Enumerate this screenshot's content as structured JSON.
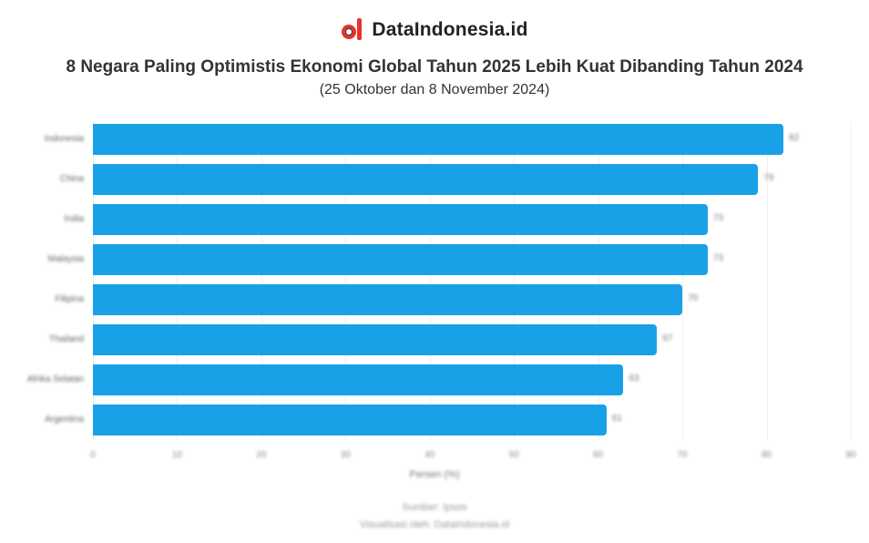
{
  "brand": {
    "name": "DataIndonesia.id",
    "logo_icon": "magnifier-d-logo-icon",
    "accent": "#e63329"
  },
  "header": {
    "title": "8 Negara Paling Optimistis Ekonomi Global Tahun 2025 Lebih Kuat Dibanding Tahun 2024",
    "subtitle": "(25 Oktober dan 8 November 2024)"
  },
  "footer": {
    "source": "Sumber: Ipsos",
    "credit": "Visualisasi oleh: DataIndonesia.id"
  },
  "colors": {
    "bar": "#19a1e8",
    "text": "#333333"
  },
  "chart_data": {
    "type": "bar",
    "orientation": "horizontal",
    "title": "8 Negara Paling Optimistis Ekonomi Global Tahun 2025 Lebih Kuat Dibanding Tahun 2024",
    "subtitle": "(25 Oktober dan 8 November 2024)",
    "categories": [
      "Indonesia",
      "China",
      "India",
      "Malaysia",
      "Filipina",
      "Thailand",
      "Afrika Selatan",
      "Argentina"
    ],
    "values": [
      82,
      79,
      73,
      73,
      70,
      67,
      63,
      61
    ],
    "value_labels": [
      "82",
      "79",
      "73",
      "73",
      "70",
      "67",
      "63",
      "61"
    ],
    "xlabel": "Persen (%)",
    "ylabel": "",
    "xlim": [
      0,
      90
    ],
    "ticks": [
      "0",
      "10",
      "20",
      "30",
      "40",
      "50",
      "60",
      "70",
      "80",
      "90"
    ],
    "grid": true,
    "legend": "none"
  }
}
